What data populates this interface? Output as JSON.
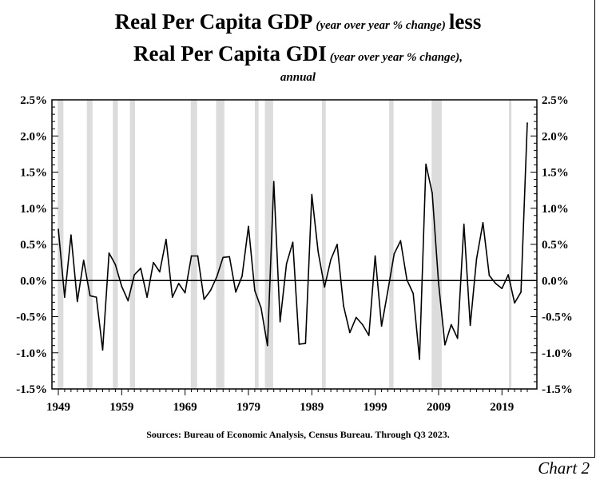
{
  "title": {
    "line1_main": "Real Per Capita GDP",
    "line1_note": "(year over year % change)",
    "line1_tail": "less",
    "line2_main": "Real Per Capita GDI",
    "line2_note": "(year over year % change),",
    "line3": "annual"
  },
  "source": "Sources: Bureau of Economic Analysis, Census Bureau. Through Q3 2023.",
  "chart_label": "Chart 2",
  "chart_data": {
    "type": "line",
    "title": "Real Per Capita GDP (year over year % change) less Real Per Capita GDI (year over year % change), annual",
    "xlim": [
      1949,
      2023
    ],
    "ylim": [
      -1.5,
      2.5
    ],
    "y_ticks": [
      "2.5%",
      "2.0%",
      "1.5%",
      "1.0%",
      "0.5%",
      "0.0%",
      "-0.5%",
      "-1.0%",
      "-1.5%"
    ],
    "x_tick_labels": [
      "1949",
      "1959",
      "1969",
      "1979",
      "1989",
      "1999",
      "2009",
      "2019"
    ],
    "x_tick_values": [
      1949,
      1959,
      1969,
      1979,
      1989,
      1999,
      2009,
      2019
    ],
    "recession_shading": [
      [
        1948.9,
        1949.8
      ],
      [
        1953.5,
        1954.4
      ],
      [
        1957.6,
        1958.4
      ],
      [
        1960.3,
        1961.1
      ],
      [
        1969.9,
        1970.9
      ],
      [
        1973.9,
        1975.2
      ],
      [
        1980.0,
        1980.6
      ],
      [
        1981.6,
        1982.9
      ],
      [
        1990.6,
        1991.2
      ],
      [
        2001.2,
        2001.9
      ],
      [
        2007.9,
        2009.5
      ],
      [
        2020.1,
        2020.5
      ]
    ],
    "series": [
      {
        "x": [
          1949,
          1950,
          1951,
          1952,
          1953,
          1954,
          1955,
          1956,
          1957,
          1958,
          1959,
          1960,
          1961,
          1962,
          1963,
          1964,
          1965,
          1966,
          1967,
          1968,
          1969,
          1970,
          1971,
          1972,
          1973,
          1974,
          1975,
          1976,
          1977,
          1978,
          1979,
          1980,
          1981,
          1982,
          1983,
          1984,
          1985,
          1986,
          1987,
          1988,
          1989,
          1990,
          1991,
          1992,
          1993,
          1994,
          1995,
          1996,
          1997,
          1998,
          1999,
          2000,
          2001,
          2002,
          2003,
          2004,
          2005,
          2006,
          2007,
          2008,
          2009,
          2010,
          2011,
          2012,
          2013,
          2014,
          2015,
          2016,
          2017,
          2018,
          2019,
          2020,
          2021,
          2022,
          2023
        ],
        "values": [
          0.71,
          -0.23,
          0.63,
          -0.29,
          0.28,
          -0.21,
          -0.23,
          -0.96,
          0.38,
          0.22,
          -0.08,
          -0.28,
          0.08,
          0.17,
          -0.23,
          0.25,
          0.12,
          0.57,
          -0.23,
          -0.04,
          -0.17,
          0.34,
          0.34,
          -0.26,
          -0.14,
          0.05,
          0.32,
          0.33,
          -0.16,
          0.06,
          0.75,
          -0.14,
          -0.38,
          -0.9,
          1.37,
          -0.57,
          0.23,
          0.53,
          -0.88,
          -0.87,
          1.19,
          0.4,
          -0.09,
          0.29,
          0.5,
          -0.35,
          -0.72,
          -0.51,
          -0.61,
          -0.76,
          0.34,
          -0.63,
          -0.14,
          0.37,
          0.55,
          0.01,
          -0.18,
          -1.09,
          1.61,
          1.21,
          -0.03,
          -0.89,
          -0.61,
          -0.8,
          0.78,
          -0.62,
          0.3,
          0.8,
          0.07,
          -0.04,
          -0.11,
          0.08,
          -0.31,
          -0.16,
          2.18
        ]
      }
    ],
    "grid": false,
    "legend": "none"
  }
}
